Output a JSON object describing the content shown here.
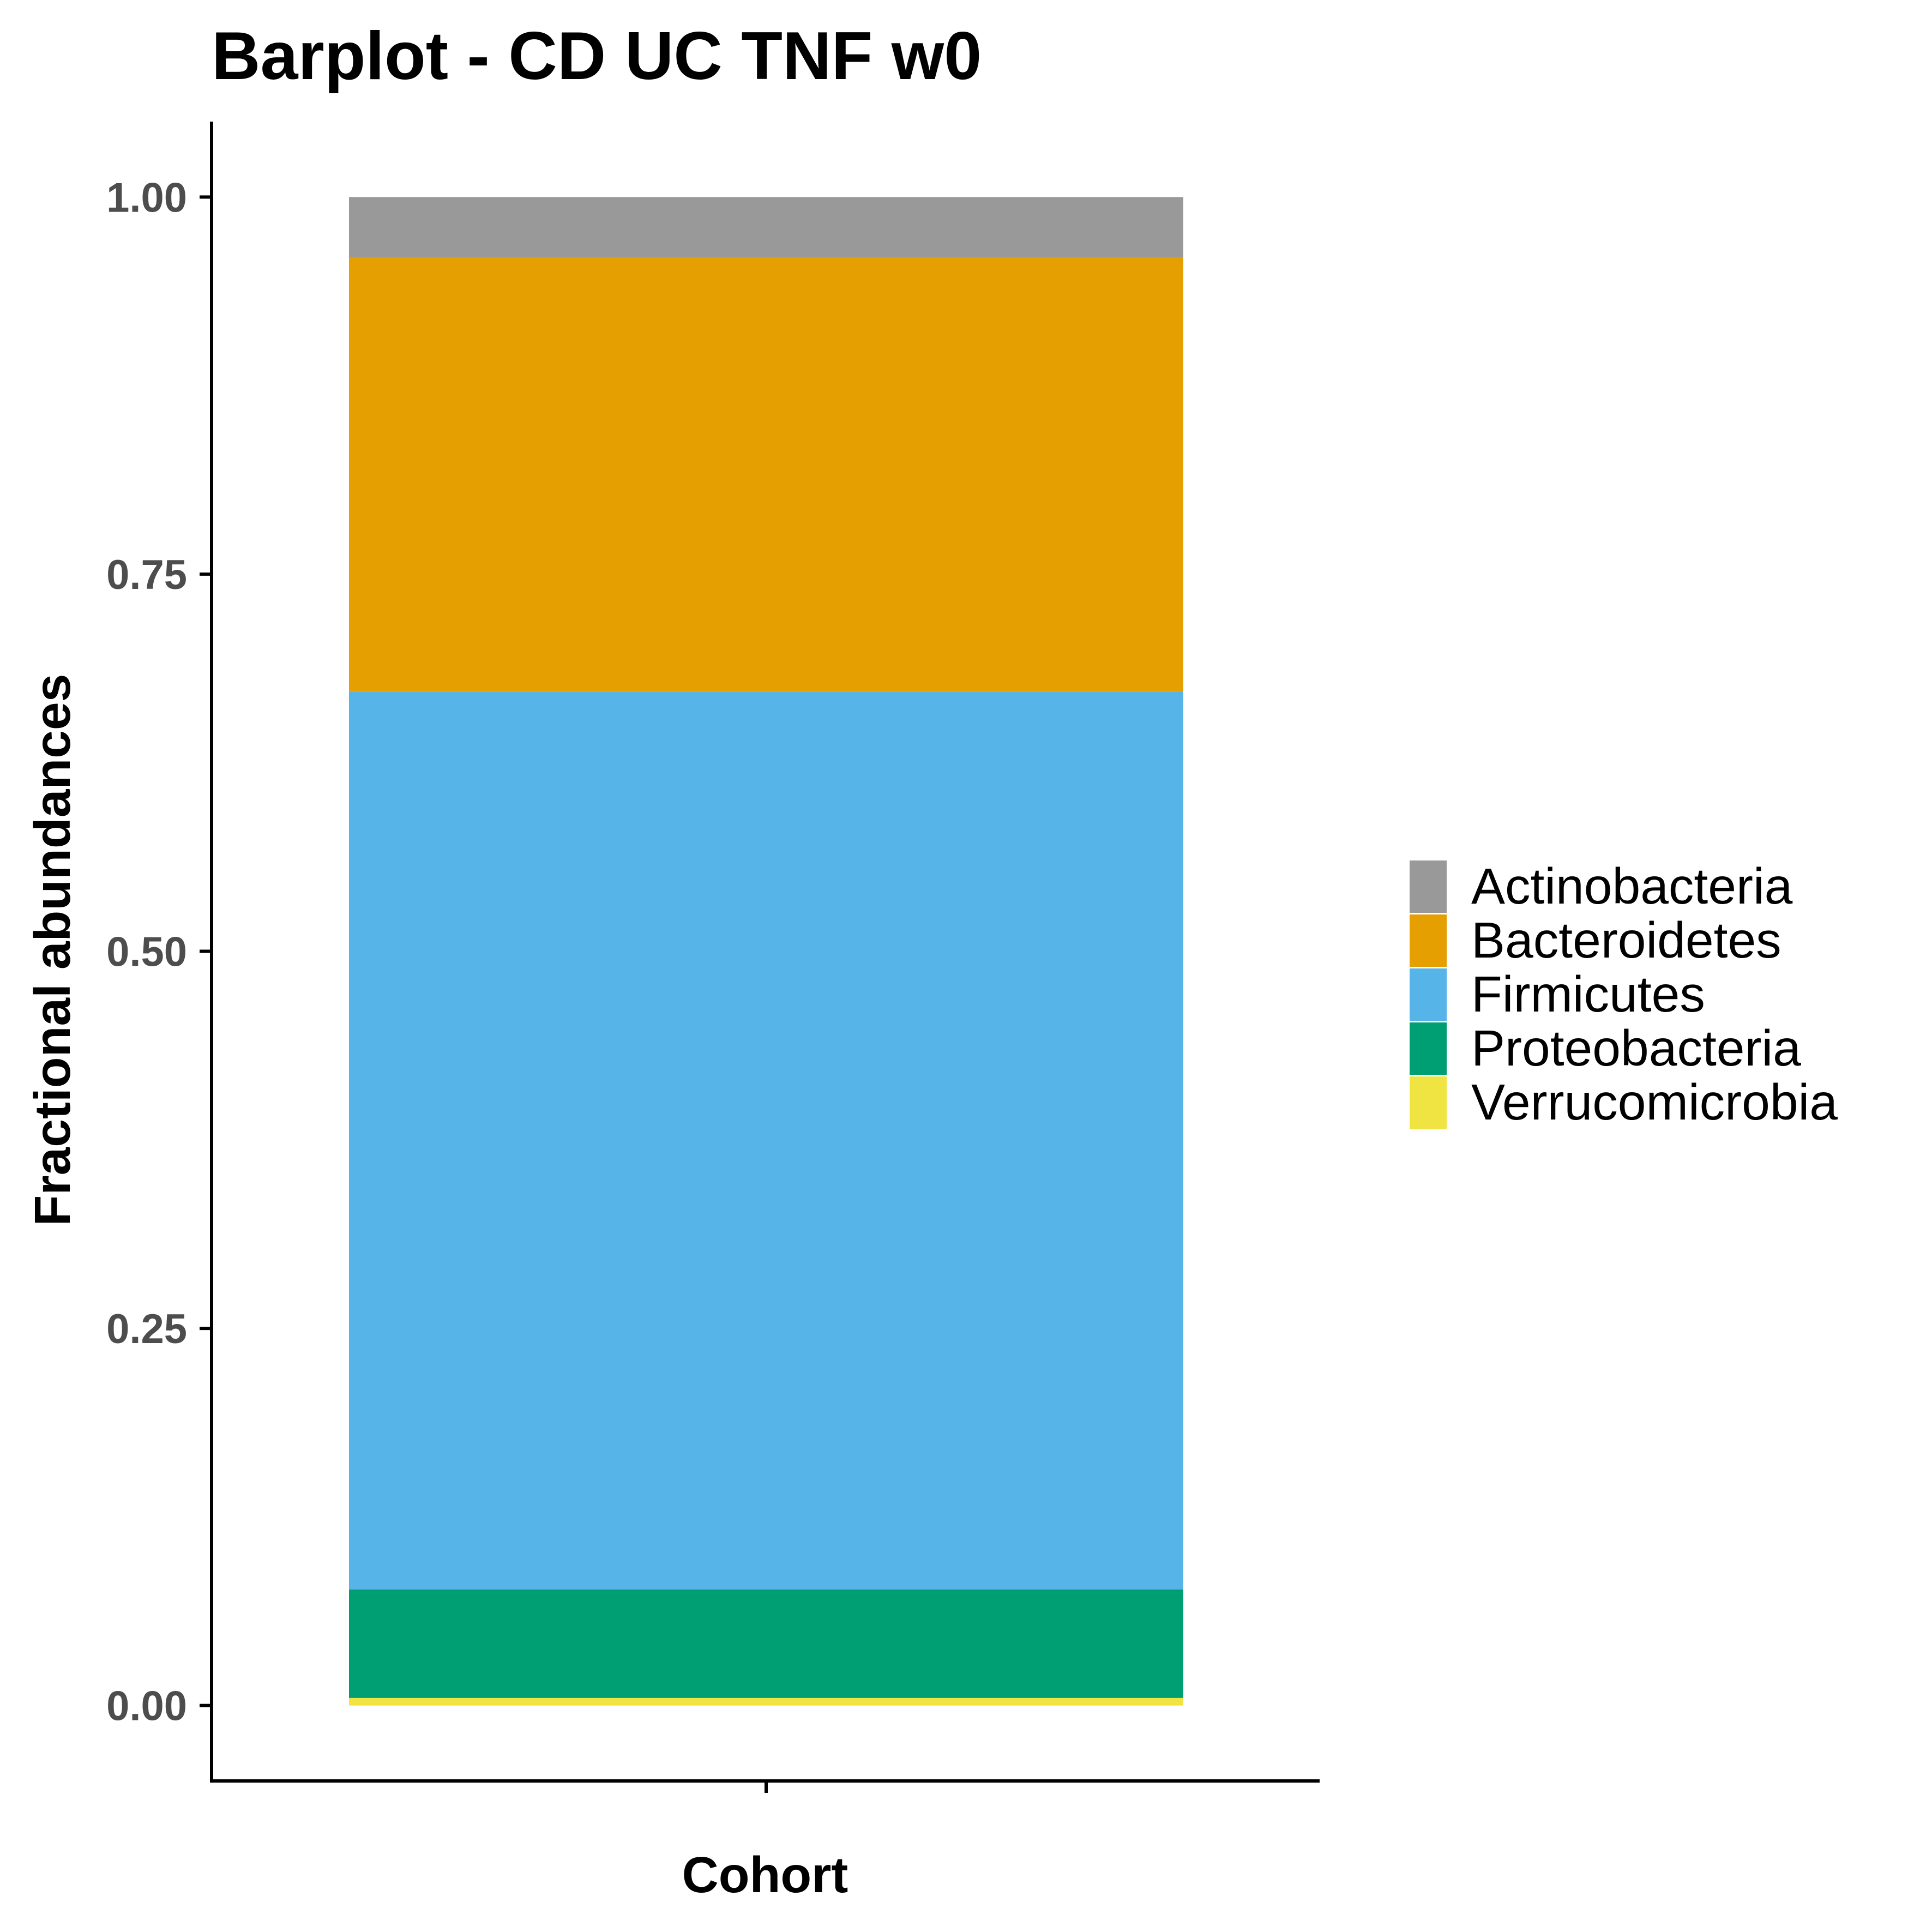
{
  "chart_data": {
    "type": "bar",
    "stacked": true,
    "title": "Barplot - CD UC TNF w0",
    "xlabel": "Cohort",
    "ylabel": "Fractional abundances",
    "categories": [
      ""
    ],
    "ylim": [
      -0.05,
      1.05
    ],
    "yticks": [
      0.0,
      0.25,
      0.5,
      0.75,
      1.0
    ],
    "ytick_labels": [
      "0.00",
      "0.25",
      "0.50",
      "0.75",
      "1.00"
    ],
    "grid": false,
    "legend_position": "right",
    "series": [
      {
        "name": "Actinobacteria",
        "color": "#999999",
        "values": [
          0.04
        ]
      },
      {
        "name": "Bacteroidetes",
        "color": "#E69F00",
        "values": [
          0.288
        ]
      },
      {
        "name": "Firmicutes",
        "color": "#56B4E9",
        "values": [
          0.595
        ]
      },
      {
        "name": "Proteobacteria",
        "color": "#009E73",
        "values": [
          0.072
        ]
      },
      {
        "name": "Verrucomicrobia",
        "color": "#F0E442",
        "values": [
          0.005
        ]
      }
    ]
  }
}
